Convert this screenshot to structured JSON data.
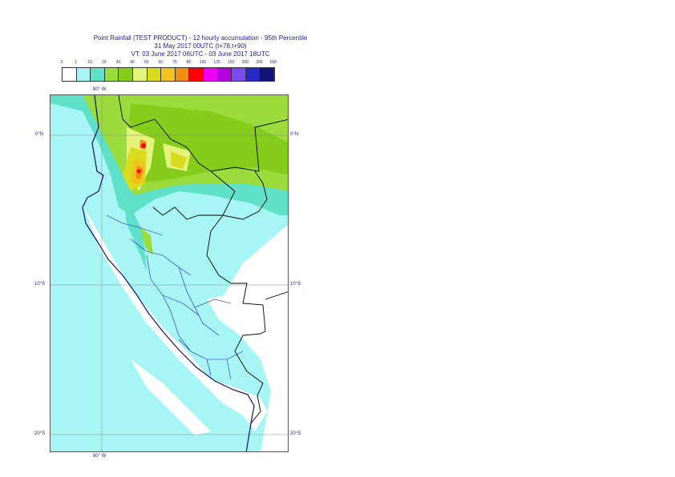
{
  "title": {
    "line1": "Point Rainfall (TEST PRODUCT) - 12 hourly accumulation - 95th Percentile",
    "line2": "31 May 2017 00UTC (t+78,t+90)",
    "line3": "VT: 03 June 2017 06UTC - 03 June 2017 18UTC"
  },
  "legend": {
    "labels": [
      "0",
      "1",
      "10",
      "20",
      "30",
      "40",
      "50",
      "60",
      "70",
      "80",
      "100",
      "125",
      "150",
      "200",
      "300",
      "500"
    ],
    "colors": [
      "#ffffff",
      "#a8f5f5",
      "#5fe0c8",
      "#9bdc3c",
      "#86cc1a",
      "#e2f57a",
      "#dada1e",
      "#f2c21e",
      "#f28c14",
      "#ff0000",
      "#f000f0",
      "#b400dc",
      "#7a4bf0",
      "#2828c8",
      "#141478"
    ]
  },
  "axes": {
    "lon_top": "80° W",
    "lon_bottom": "80° W",
    "lat_0_left": "0°N",
    "lat_0_right": "0°N",
    "lat_10_left": "10°S",
    "lat_10_right": "10°S",
    "lat_20_left": "20°S",
    "lat_20_right": "20°S"
  }
}
